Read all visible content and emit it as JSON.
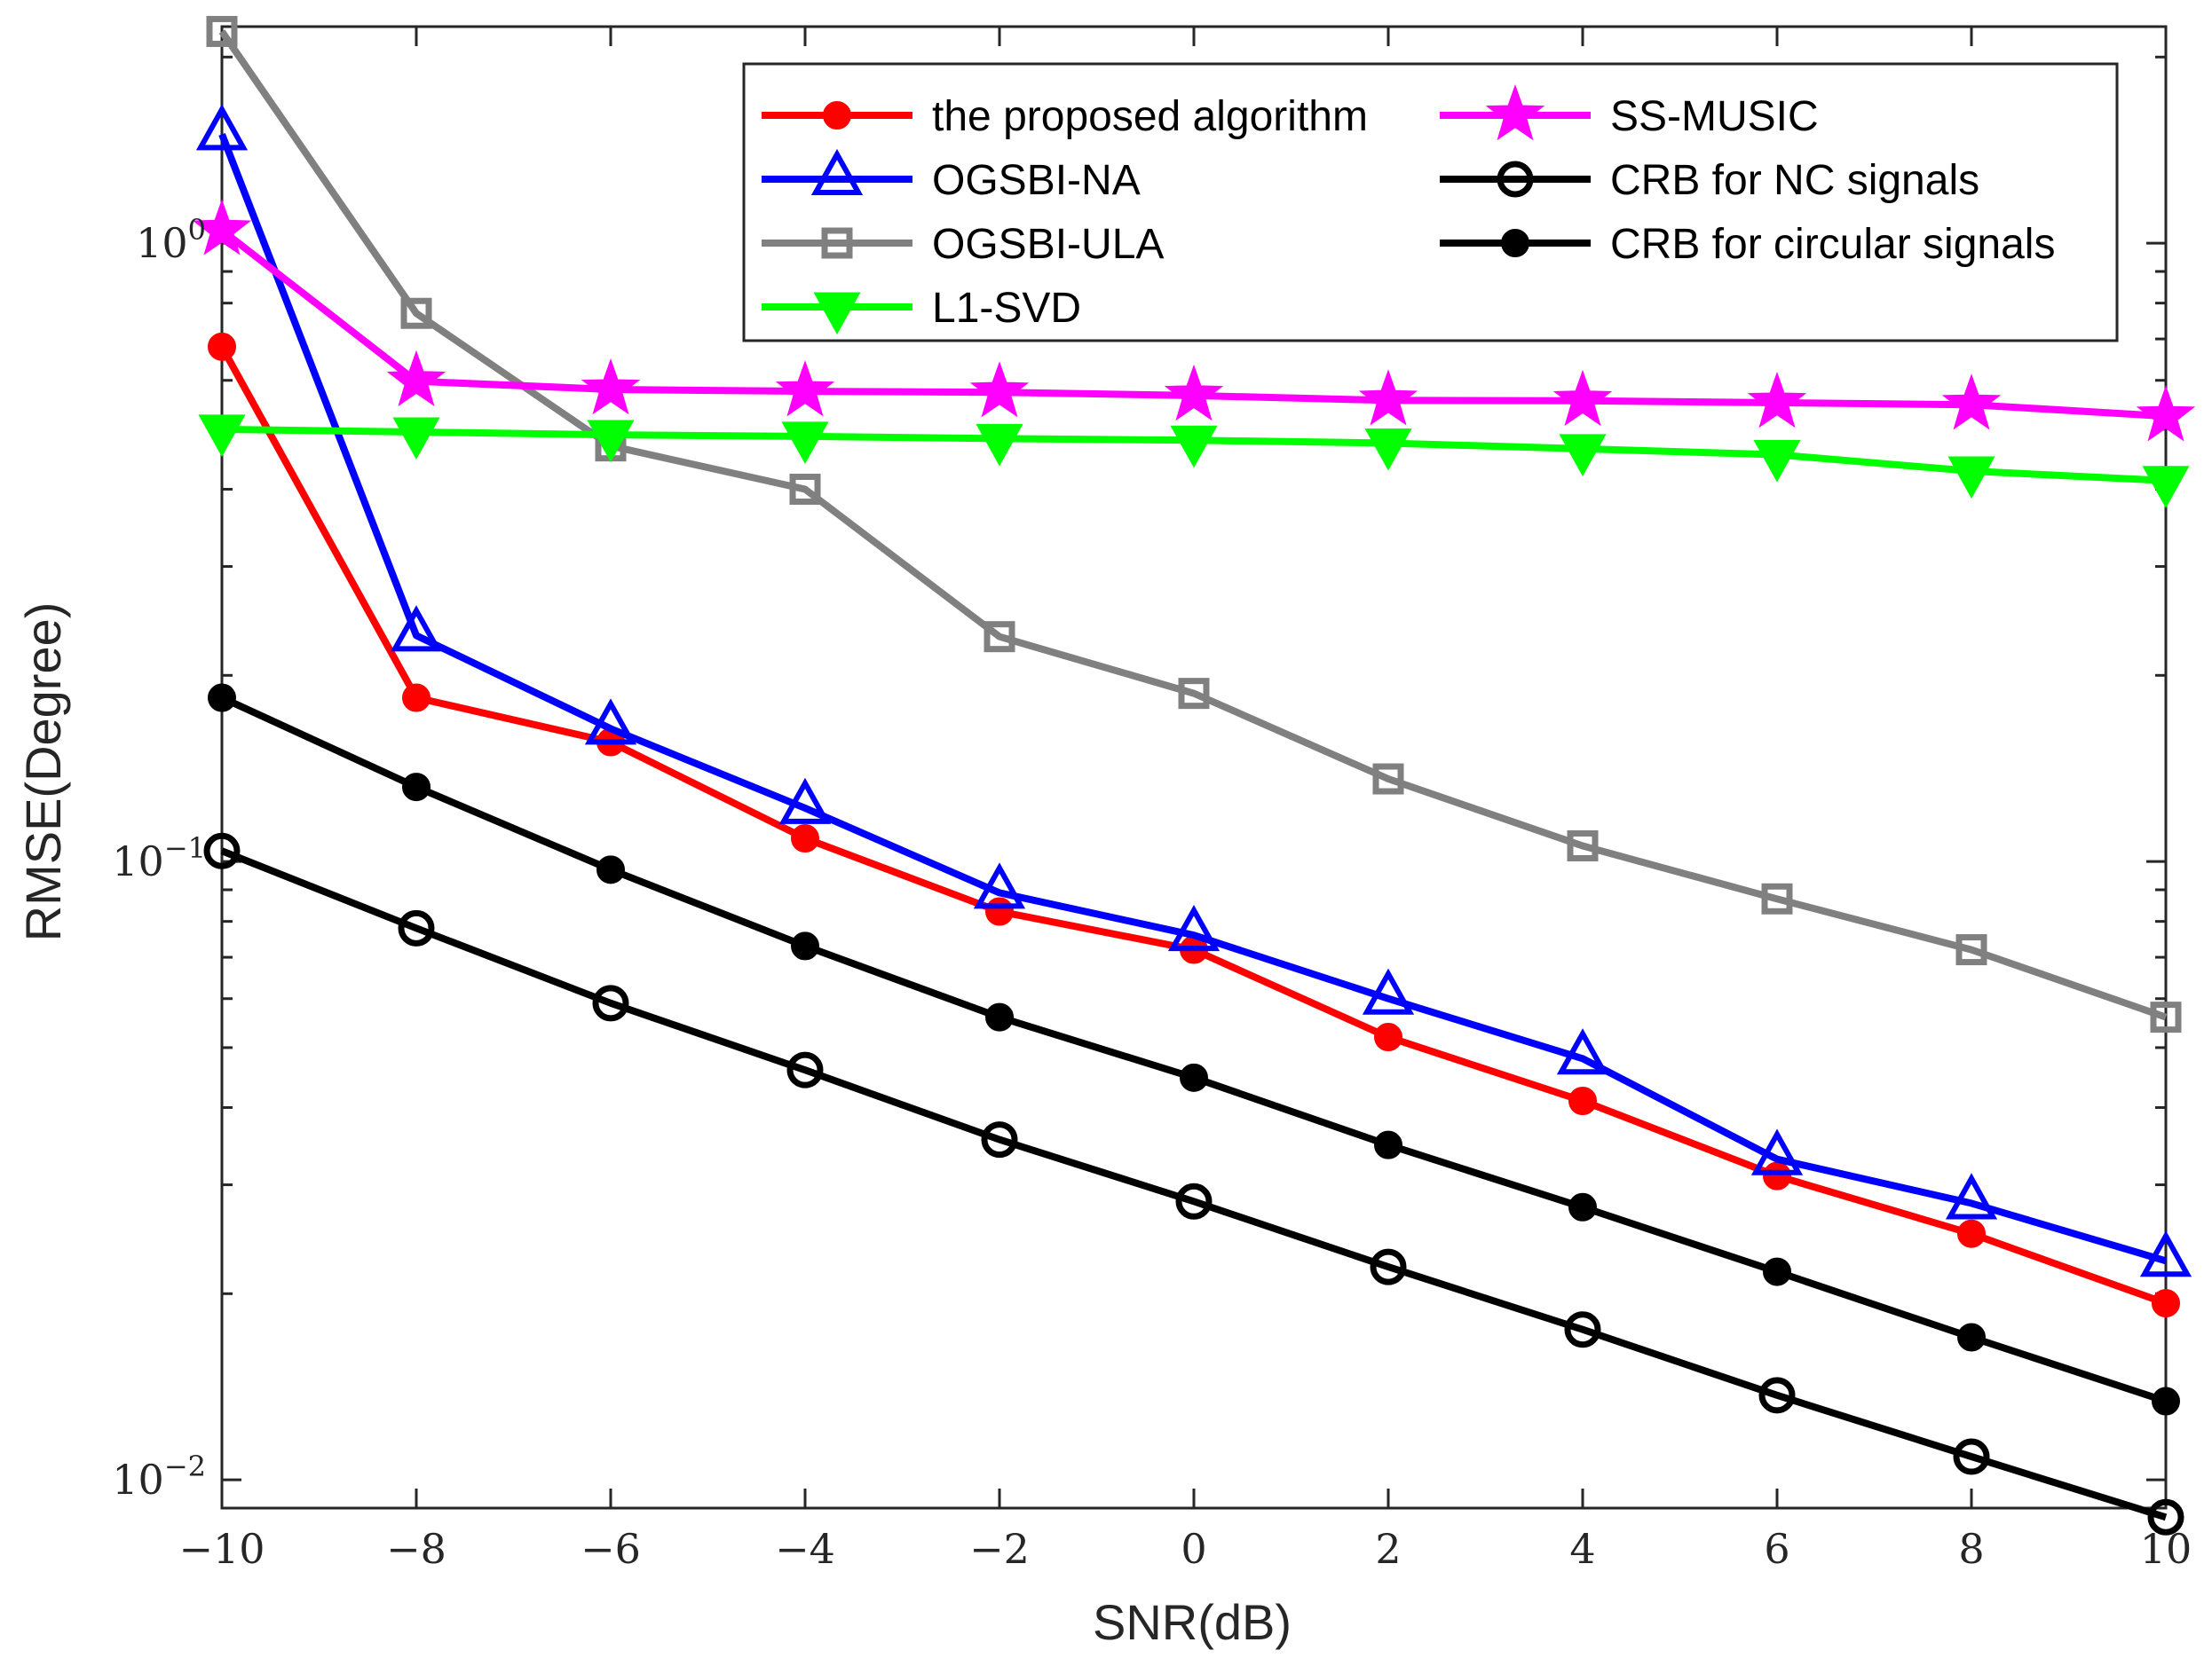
{
  "chart_data": {
    "type": "line",
    "title": "",
    "xlabel": "SNR(dB)",
    "ylabel": "RMSE(Degree)",
    "y_scale": "log",
    "xlim": [
      -10,
      10
    ],
    "ylim": [
      0.009,
      2.24
    ],
    "grid": false,
    "legend_position": "top-right",
    "x": [
      -10,
      -8,
      -6,
      -4,
      -2,
      0,
      2,
      4,
      6,
      8,
      10
    ],
    "x_ticks": [
      "−10",
      "−8",
      "−6",
      "−4",
      "−2",
      "0",
      "2",
      "4",
      "6",
      "8",
      "10"
    ],
    "y_ticks": [
      {
        "value": 1,
        "base": "10",
        "exp": "0"
      },
      {
        "value": 0.1,
        "base": "10",
        "exp": "−1"
      },
      {
        "value": 0.01,
        "base": "10",
        "exp": "−2"
      }
    ],
    "series": [
      {
        "name": "the proposed algorithm",
        "color": "#ff0000",
        "marker": "filled-circle",
        "values": [
          0.68,
          0.184,
          0.156,
          0.109,
          0.083,
          0.072,
          0.052,
          0.041,
          0.031,
          0.025,
          0.0193
        ]
      },
      {
        "name": "OGSBI-NA",
        "color": "#0000ff",
        "marker": "triangle-up",
        "values": [
          1.5,
          0.232,
          0.164,
          0.122,
          0.089,
          0.076,
          0.06,
          0.048,
          0.033,
          0.028,
          0.0226
        ]
      },
      {
        "name": "OGSBI-ULA",
        "color": "#808080",
        "marker": "square",
        "values": [
          2.2,
          0.77,
          0.47,
          0.4,
          0.231,
          0.187,
          0.136,
          0.106,
          0.087,
          0.072,
          0.056
        ]
      },
      {
        "name": "L1-SVD",
        "color": "#00ff00",
        "marker": "triangle-down",
        "values": [
          0.5,
          0.495,
          0.49,
          0.487,
          0.483,
          0.48,
          0.475,
          0.465,
          0.455,
          0.428,
          0.413
        ]
      },
      {
        "name": "SS-MUSIC",
        "color": "#ff00ff",
        "marker": "star",
        "values": [
          1.05,
          0.598,
          0.58,
          0.576,
          0.574,
          0.567,
          0.557,
          0.556,
          0.552,
          0.548,
          0.525
        ]
      },
      {
        "name": "CRB for NC signals",
        "color": "#000000",
        "marker": "open-circle",
        "values": [
          0.104,
          0.078,
          0.059,
          0.046,
          0.0355,
          0.0282,
          0.0221,
          0.0175,
          0.0137,
          0.0109,
          0.0087
        ]
      },
      {
        "name": "CRB for circular signals",
        "color": "#000000",
        "marker": "filled-circle",
        "values": [
          0.184,
          0.132,
          0.097,
          0.073,
          0.056,
          0.0447,
          0.0348,
          0.0276,
          0.0217,
          0.017,
          0.0134
        ]
      }
    ]
  }
}
